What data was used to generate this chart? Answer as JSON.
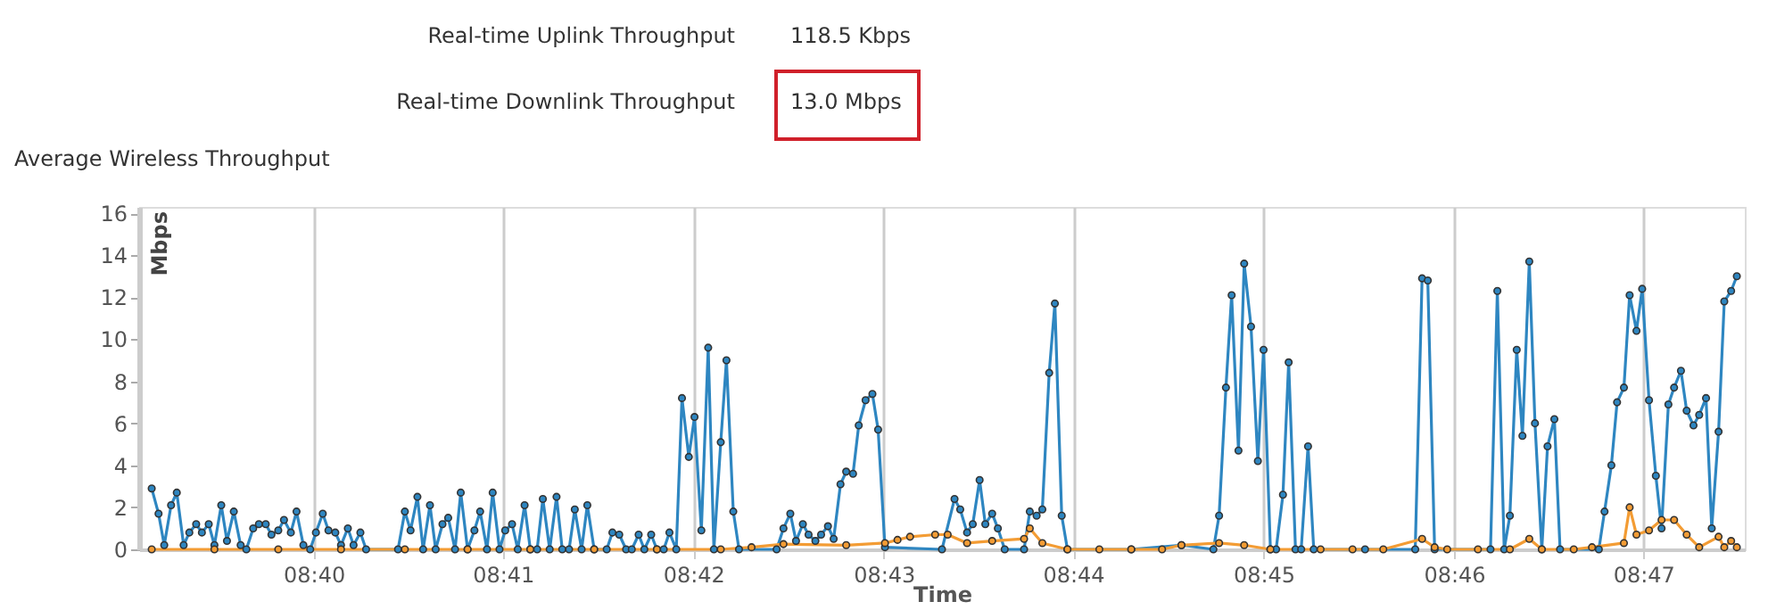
{
  "chart_data": {
    "type": "line",
    "title": "Average Wireless Throughput",
    "annotations": [
      "Real-time Uplink Throughput",
      "118.5 Kbps",
      "Real-time Downlink Throughput",
      "13.0 Mbps"
    ],
    "xlabel": "Time",
    "ylabel": "Mbps",
    "xlim": [
      8.6514,
      8.7922
    ],
    "xticks": [
      {
        "value": 8.6667,
        "label": "08:40"
      },
      {
        "value": 8.6833,
        "label": "08:41"
      },
      {
        "value": 8.7,
        "label": "08:42"
      },
      {
        "value": 8.7167,
        "label": "08:43"
      },
      {
        "value": 8.7333,
        "label": "08:44"
      },
      {
        "value": 8.75,
        "label": "08:45"
      },
      {
        "value": 8.7667,
        "label": "08:46"
      },
      {
        "value": 8.7833,
        "label": "08:47"
      }
    ],
    "ylim": [
      0,
      16.3
    ],
    "yticks": [
      0,
      2,
      4,
      6,
      8,
      10,
      12,
      14,
      16
    ],
    "grid": "x",
    "legend": false,
    "marker": "circle",
    "line_style": "solid",
    "series": [
      {
        "color": "#2e86c1",
        "x": [
          8.6525,
          8.6531,
          8.6536,
          8.6542,
          8.6547,
          8.6553,
          8.6558,
          8.6564,
          8.6569,
          8.6575,
          8.658,
          8.6586,
          8.6591,
          8.6597,
          8.6603,
          8.6608,
          8.6614,
          8.6619,
          8.6625,
          8.663,
          8.6636,
          8.6641,
          8.6647,
          8.6652,
          8.6658,
          8.6664,
          8.6669,
          8.6675,
          8.668,
          8.6686,
          8.6691,
          8.6697,
          8.6702,
          8.6708,
          8.6713,
          8.6741,
          8.6747,
          8.6752,
          8.6758,
          8.6763,
          8.6769,
          8.6774,
          8.678,
          8.6785,
          8.6791,
          8.6796,
          8.6802,
          8.6808,
          8.6813,
          8.6819,
          8.6824,
          8.683,
          8.6835,
          8.6841,
          8.6846,
          8.6852,
          8.6857,
          8.6863,
          8.6868,
          8.6874,
          8.688,
          8.6885,
          8.6891,
          8.6896,
          8.6902,
          8.6907,
          8.6913,
          8.6924,
          8.6929,
          8.6935,
          8.6941,
          8.6946,
          8.6952,
          8.6957,
          8.6963,
          8.6968,
          8.6974,
          8.6979,
          8.6985,
          8.699,
          8.6996,
          8.7001,
          8.7007,
          8.7013,
          8.7018,
          8.7024,
          8.7029,
          8.7035,
          8.704,
          8.7073,
          8.7079,
          8.7085,
          8.709,
          8.7096,
          8.7101,
          8.7107,
          8.7112,
          8.7118,
          8.7123,
          8.7129,
          8.7134,
          8.714,
          8.7145,
          8.7151,
          8.7157,
          8.7162,
          8.7168,
          8.7218,
          8.7229,
          8.7234,
          8.724,
          8.7245,
          8.7251,
          8.7256,
          8.7262,
          8.7267,
          8.7273,
          8.729,
          8.7295,
          8.7301,
          8.7306,
          8.7312,
          8.7317,
          8.7323,
          8.7328,
          8.7384,
          8.7428,
          8.7456,
          8.7461,
          8.7467,
          8.7472,
          8.7478,
          8.7483,
          8.7489,
          8.7495,
          8.75,
          8.7506,
          8.7511,
          8.7517,
          8.7522,
          8.7528,
          8.7533,
          8.7539,
          8.7544,
          8.7589,
          8.7633,
          8.7639,
          8.7644,
          8.765,
          8.7699,
          8.7705,
          8.7711,
          8.7716,
          8.7722,
          8.7727,
          8.7733,
          8.7738,
          8.7744,
          8.7749,
          8.7755,
          8.776,
          8.7794,
          8.7799,
          8.7805,
          8.781,
          8.7816,
          8.7821,
          8.7827,
          8.7832,
          8.7838,
          8.7844,
          8.7849,
          8.7855,
          8.786,
          8.7866,
          8.7871,
          8.7877,
          8.7882,
          8.7888,
          8.7893,
          8.7899,
          8.7904,
          8.791,
          8.7915
        ],
        "values": [
          2.9,
          1.7,
          0.2,
          2.1,
          2.7,
          0.2,
          0.8,
          1.2,
          0.8,
          1.2,
          0.2,
          2.1,
          0.4,
          1.8,
          0.2,
          0,
          1.0,
          1.2,
          1.2,
          0.7,
          0.9,
          1.4,
          0.8,
          1.8,
          0.2,
          0,
          0.8,
          1.7,
          0.9,
          0.8,
          0.2,
          1.0,
          0.2,
          0.8,
          0,
          0,
          1.8,
          0.9,
          2.5,
          0,
          2.1,
          0,
          1.2,
          1.5,
          0,
          2.7,
          0,
          0.9,
          1.8,
          0,
          2.7,
          0,
          0.9,
          1.2,
          0,
          2.1,
          0,
          0,
          2.4,
          0,
          2.5,
          0,
          0,
          1.9,
          0,
          2.1,
          0,
          0,
          0.8,
          0.7,
          0,
          0,
          0.7,
          0,
          0.7,
          0,
          0,
          0.8,
          0,
          7.2,
          4.4,
          6.3,
          0.9,
          9.6,
          0,
          5.1,
          9.0,
          1.8,
          0,
          0,
          1.0,
          1.7,
          0.4,
          1.2,
          0.7,
          0.4,
          0.7,
          1.1,
          0.5,
          3.1,
          3.7,
          3.6,
          5.9,
          7.1,
          7.4,
          5.7,
          0.1,
          0,
          2.4,
          1.9,
          0.8,
          1.2,
          3.3,
          1.2,
          1.7,
          1.0,
          0,
          0,
          1.8,
          1.6,
          1.9,
          8.4,
          11.7,
          1.6,
          0,
          0,
          0.2,
          0,
          1.6,
          7.7,
          12.1,
          4.7,
          13.6,
          10.6,
          4.2,
          9.5,
          0,
          0,
          2.6,
          8.9,
          0,
          0,
          4.9,
          0,
          0,
          0,
          12.9,
          12.8,
          0,
          0,
          12.3,
          0,
          1.6,
          9.5,
          5.4,
          13.7,
          6.0,
          0,
          4.9,
          6.2,
          0,
          0,
          1.8,
          4.0,
          7.0,
          7.7,
          12.1,
          10.4,
          12.4,
          7.1,
          3.5,
          1.0,
          6.9,
          7.7,
          8.5,
          6.6,
          5.9,
          6.4,
          7.2,
          1.0,
          5.6,
          11.8,
          12.3,
          13.0
        ]
      },
      {
        "color": "#f39c34",
        "x": [
          8.6525,
          8.658,
          8.6636,
          8.6691,
          8.6747,
          8.6802,
          8.6857,
          8.6913,
          8.6968,
          8.7024,
          8.7051,
          8.7079,
          8.7134,
          8.7168,
          8.7179,
          8.719,
          8.7212,
          8.7223,
          8.724,
          8.7262,
          8.729,
          8.7295,
          8.7306,
          8.7328,
          8.7356,
          8.7384,
          8.7411,
          8.7428,
          8.7461,
          8.7483,
          8.7506,
          8.755,
          8.7578,
          8.7605,
          8.7639,
          8.765,
          8.7661,
          8.7688,
          8.7716,
          8.7733,
          8.7744,
          8.7772,
          8.7788,
          8.7816,
          8.7821,
          8.7827,
          8.7838,
          8.7849,
          8.786,
          8.7871,
          8.7882,
          8.7899,
          8.7904,
          8.791,
          8.7915
        ],
        "values": [
          0,
          0,
          0,
          0,
          0,
          0,
          0,
          0,
          0,
          0,
          0.1,
          0.25,
          0.2,
          0.3,
          0.45,
          0.6,
          0.7,
          0.7,
          0.3,
          0.4,
          0.5,
          1.0,
          0.3,
          0,
          0,
          0,
          0,
          0.2,
          0.3,
          0.2,
          0,
          0,
          0,
          0,
          0.5,
          0.1,
          0,
          0,
          0,
          0.5,
          0,
          0,
          0.1,
          0.3,
          2.0,
          0.7,
          0.9,
          1.4,
          1.4,
          0.7,
          0.1,
          0.6,
          0.1,
          0.4,
          0.1
        ]
      }
    ]
  }
}
